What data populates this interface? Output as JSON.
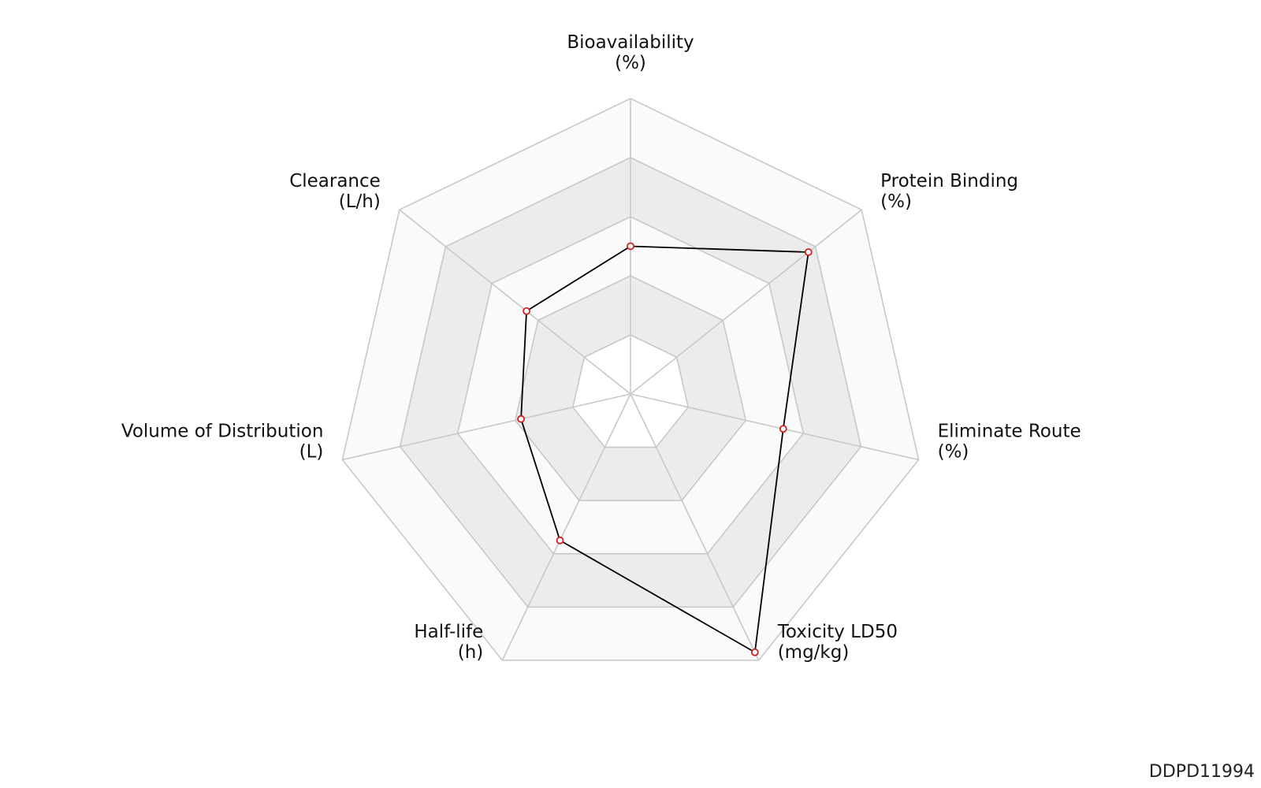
{
  "chart_data": {
    "type": "radar",
    "axes": [
      {
        "name": "Bioavailability",
        "unit": "(%)",
        "value": 0.5,
        "label_anchor": "middle"
      },
      {
        "name": "Protein Binding",
        "unit": "(%)",
        "value": 0.77,
        "label_anchor": "start"
      },
      {
        "name": "Eliminate Route",
        "unit": "(%)",
        "value": 0.53,
        "label_anchor": "start"
      },
      {
        "name": "Toxicity LD50",
        "unit": "(mg/kg)",
        "value": 0.97,
        "label_anchor": "start"
      },
      {
        "name": "Half-life",
        "unit": "(h)",
        "value": 0.55,
        "label_anchor": "end"
      },
      {
        "name": "Volume of Distribution",
        "unit": "(L)",
        "value": 0.38,
        "label_anchor": "end"
      },
      {
        "name": "Clearance",
        "unit": "(L/h)",
        "value": 0.45,
        "label_anchor": "end"
      }
    ],
    "range": [
      0,
      1
    ],
    "rings": 5,
    "grid": true,
    "colors": {
      "line": "#000000",
      "marker": "#cc2222",
      "grid": "#c8c8c8",
      "band_shaded": "#ececec",
      "band_light": "#fafafa"
    }
  },
  "watermark": "DDPD11994"
}
